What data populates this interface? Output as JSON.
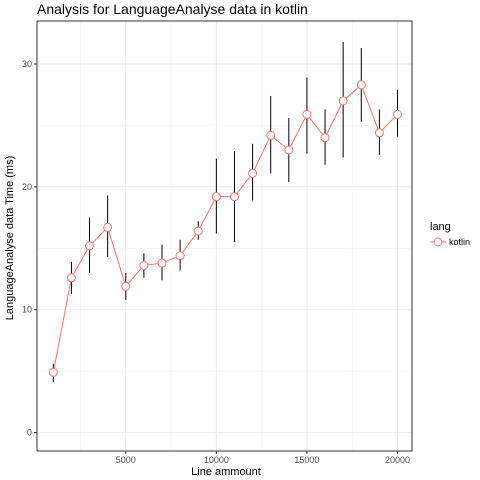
{
  "chart_data": {
    "type": "line",
    "title": "Analysis for LanguageAnalyse data in kotlin",
    "xlabel": "Line ammount",
    "ylabel": "LanguageAnalyse data Time (ms)",
    "xlim": [
      100,
      20800
    ],
    "ylim": [
      -1.5,
      33.5
    ],
    "x_ticks": [
      5000,
      10000,
      15000,
      20000
    ],
    "y_ticks": [
      0,
      10,
      20,
      30
    ],
    "grid": true,
    "legend": {
      "title": "lang",
      "position": "right"
    },
    "series": [
      {
        "name": "kotlin",
        "color": "#F8766D",
        "x": [
          1000,
          2000,
          3000,
          4000,
          5000,
          6000,
          7000,
          8000,
          9000,
          10000,
          11000,
          12000,
          13000,
          14000,
          15000,
          16000,
          17000,
          18000,
          19000,
          20000
        ],
        "y": [
          4.9,
          12.6,
          15.2,
          16.7,
          11.9,
          13.6,
          13.8,
          14.4,
          16.4,
          19.2,
          19.2,
          21.1,
          24.2,
          23.0,
          25.9,
          24.0,
          27.0,
          28.3,
          24.4,
          25.9
        ],
        "error_low": [
          4.1,
          11.3,
          13.0,
          14.3,
          10.8,
          12.6,
          12.4,
          13.2,
          15.7,
          16.2,
          15.5,
          18.9,
          21.1,
          20.4,
          22.7,
          21.8,
          22.4,
          25.3,
          22.6,
          24.1
        ],
        "error_high": [
          5.6,
          13.9,
          17.5,
          19.3,
          13.0,
          14.6,
          15.3,
          15.7,
          17.2,
          22.3,
          22.9,
          23.5,
          27.4,
          25.6,
          28.9,
          26.3,
          31.8,
          31.3,
          26.3,
          27.9
        ]
      }
    ]
  }
}
